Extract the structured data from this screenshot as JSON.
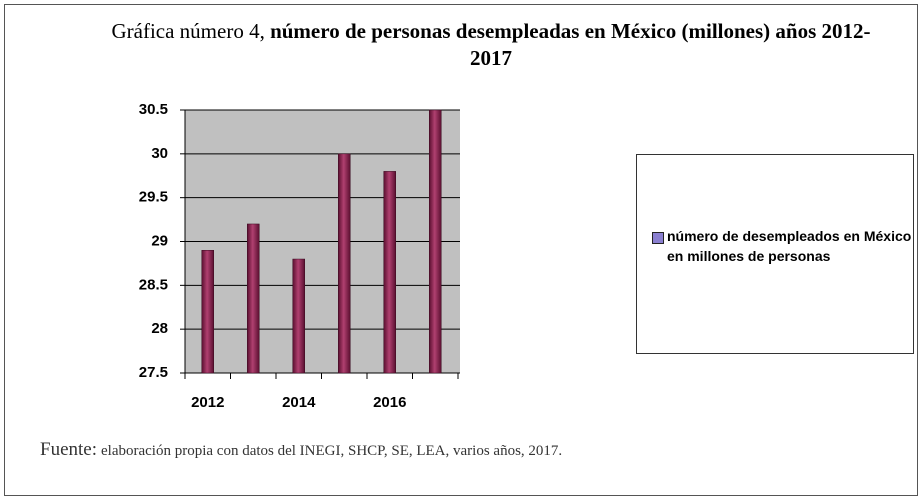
{
  "chart_data": {
    "type": "bar",
    "title_prefix": "Gráfica número 4,",
    "title": "número de personas desempleadas en México (millones) años 2012-2017",
    "categories": [
      "2012",
      null,
      "2014",
      null,
      "2016",
      null
    ],
    "series": [
      {
        "name": "número de desempleados en México en millones de personas",
        "color": "#8b1f4f",
        "values": [
          28.9,
          29.2,
          28.8,
          30.0,
          29.8,
          30.5
        ]
      }
    ],
    "ylim": [
      27.5,
      30.5
    ],
    "yticks": [
      27.5,
      28,
      28.5,
      29,
      29.5,
      30,
      30.5
    ],
    "grid": true,
    "legend": "right",
    "source_label": "Fuente:",
    "source": "elaboración propia con datos del INEGI, SHCP, SE, LEA, varios años, 2017."
  }
}
